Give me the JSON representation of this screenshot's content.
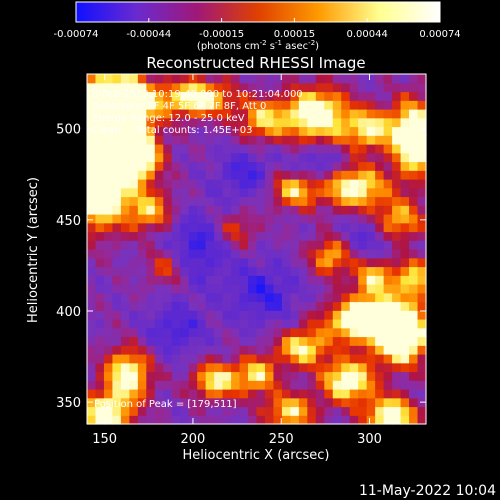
{
  "chart_data": {
    "type": "heatmap",
    "title": "Reconstructed RHESSI Image",
    "xlabel": "Heliocentric X (arcsec)",
    "ylabel": "Heliocentric Y (arcsec)",
    "x_ticks": [
      150,
      200,
      250,
      300
    ],
    "y_ticks": [
      350,
      400,
      450,
      500
    ],
    "xlim": [
      140,
      332
    ],
    "ylim": [
      338,
      530
    ],
    "colorbar": {
      "ticks": [
        "-0.00074",
        "-0.00044",
        "-0.00015",
        "0.00015",
        "0.00044",
        "0.00074"
      ],
      "range": [
        -0.00074,
        0.00074
      ],
      "unit_label_parts": [
        "(photons cm",
        "-2",
        " s",
        "-1",
        " asec",
        "-2",
        ")"
      ],
      "colors": [
        "#1010ff",
        "#6a2ad0",
        "#a01878",
        "#e04000",
        "#ff9a00",
        "#ffff90",
        "#ffffff"
      ]
    },
    "annotations": [
      "8-Feb-2013 10:19:40.000 to 10:21:04.000",
      "Detectors: 3F 4F 5F 6F 7F 8F, Att 0",
      "Energy Range: 12.0 - 25.0 keV",
      "Clean     Total counts: 1.45E+03"
    ],
    "peak_label": "Position of Peak = [179,511]",
    "peak": [
      179,
      511
    ],
    "grid_size": 40,
    "hot_spots": [
      {
        "x": 152,
        "y": 500,
        "amp": 1.0,
        "sx": 14,
        "sy": 20
      },
      {
        "x": 146,
        "y": 470,
        "amp": 0.9,
        "sx": 10,
        "sy": 16
      },
      {
        "x": 168,
        "y": 485,
        "amp": 0.7,
        "sx": 9,
        "sy": 9
      },
      {
        "x": 160,
        "y": 515,
        "amp": 0.8,
        "sx": 12,
        "sy": 8
      },
      {
        "x": 202,
        "y": 517,
        "amp": 0.7,
        "sx": 14,
        "sy": 7
      },
      {
        "x": 240,
        "y": 505,
        "amp": 0.5,
        "sx": 10,
        "sy": 8
      },
      {
        "x": 270,
        "y": 508,
        "amp": 0.8,
        "sx": 12,
        "sy": 10
      },
      {
        "x": 300,
        "y": 500,
        "amp": 0.6,
        "sx": 10,
        "sy": 8
      },
      {
        "x": 325,
        "y": 495,
        "amp": 0.9,
        "sx": 8,
        "sy": 14
      },
      {
        "x": 292,
        "y": 468,
        "amp": 0.7,
        "sx": 12,
        "sy": 8
      },
      {
        "x": 258,
        "y": 467,
        "amp": 0.55,
        "sx": 10,
        "sy": 7
      },
      {
        "x": 175,
        "y": 455,
        "amp": 0.5,
        "sx": 10,
        "sy": 8
      },
      {
        "x": 316,
        "y": 450,
        "amp": 0.5,
        "sx": 10,
        "sy": 8
      },
      {
        "x": 278,
        "y": 430,
        "amp": 0.5,
        "sx": 8,
        "sy": 7
      },
      {
        "x": 302,
        "y": 418,
        "amp": 0.55,
        "sx": 8,
        "sy": 8
      },
      {
        "x": 325,
        "y": 417,
        "amp": 0.55,
        "sx": 8,
        "sy": 8
      },
      {
        "x": 300,
        "y": 395,
        "amp": 0.95,
        "sx": 16,
        "sy": 8
      },
      {
        "x": 318,
        "y": 385,
        "amp": 0.9,
        "sx": 10,
        "sy": 10
      },
      {
        "x": 262,
        "y": 380,
        "amp": 0.6,
        "sx": 10,
        "sy": 7
      },
      {
        "x": 288,
        "y": 362,
        "amp": 0.75,
        "sx": 10,
        "sy": 8
      },
      {
        "x": 213,
        "y": 362,
        "amp": 0.6,
        "sx": 9,
        "sy": 7
      },
      {
        "x": 236,
        "y": 365,
        "amp": 0.55,
        "sx": 8,
        "sy": 7
      },
      {
        "x": 163,
        "y": 365,
        "amp": 0.7,
        "sx": 9,
        "sy": 10
      },
      {
        "x": 150,
        "y": 343,
        "amp": 0.75,
        "sx": 10,
        "sy": 8
      },
      {
        "x": 255,
        "y": 345,
        "amp": 0.55,
        "sx": 10,
        "sy": 7
      },
      {
        "x": 312,
        "y": 343,
        "amp": 0.75,
        "sx": 10,
        "sy": 7
      },
      {
        "x": 185,
        "y": 425,
        "amp": 0.35,
        "sx": 8,
        "sy": 8
      },
      {
        "x": 225,
        "y": 445,
        "amp": 0.3,
        "sx": 8,
        "sy": 7
      }
    ],
    "cold_spots": [
      {
        "x": 200,
        "y": 435,
        "amp": 0.6,
        "sx": 14,
        "sy": 14
      },
      {
        "x": 240,
        "y": 410,
        "amp": 0.55,
        "sx": 14,
        "sy": 12
      },
      {
        "x": 190,
        "y": 390,
        "amp": 0.5,
        "sx": 12,
        "sy": 10
      },
      {
        "x": 270,
        "y": 480,
        "amp": 0.5,
        "sx": 10,
        "sy": 8
      },
      {
        "x": 300,
        "y": 440,
        "amp": 0.45,
        "sx": 10,
        "sy": 10
      },
      {
        "x": 230,
        "y": 475,
        "amp": 0.5,
        "sx": 12,
        "sy": 10
      }
    ]
  },
  "footer": {
    "timestamp": "11-May-2022 10:04"
  }
}
